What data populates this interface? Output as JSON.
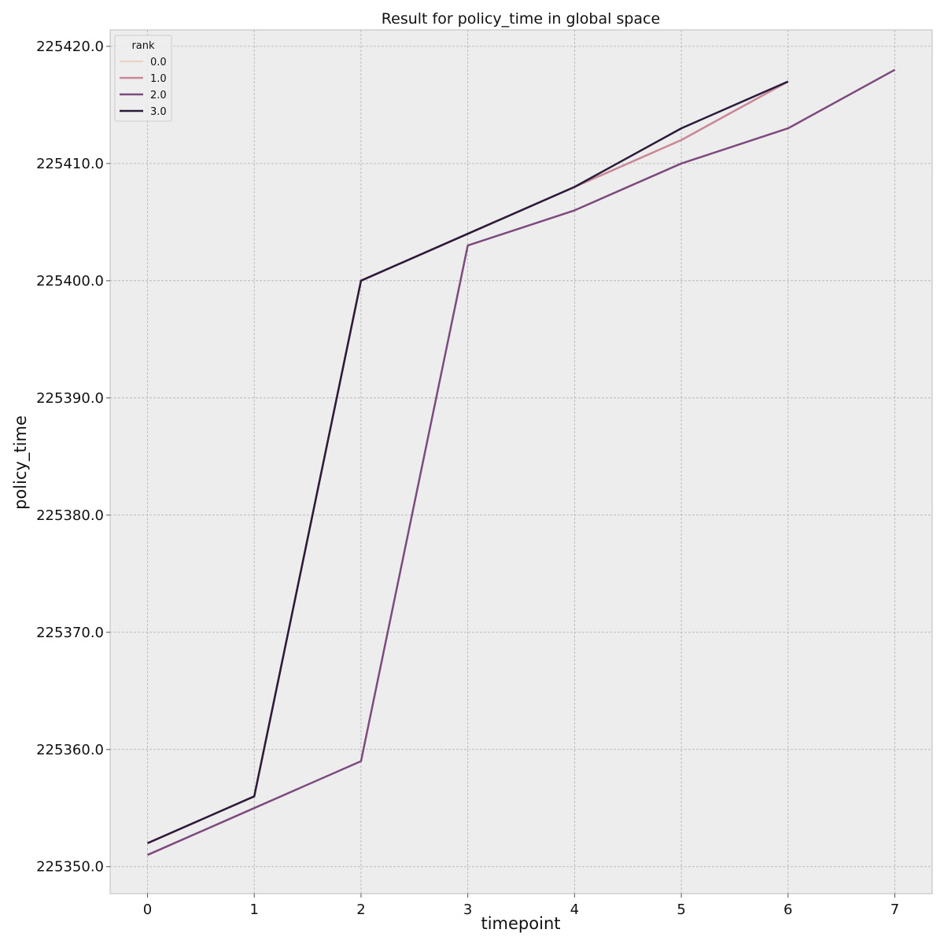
{
  "chart_data": {
    "type": "line",
    "title": "Result for policy_time in global space",
    "xlabel": "timepoint",
    "ylabel": "policy_time",
    "xlim": [
      -0.35,
      7.35
    ],
    "ylim": [
      225347.7,
      225421.4
    ],
    "x_ticks": [
      0,
      1,
      2,
      3,
      4,
      5,
      6,
      7
    ],
    "x_tick_labels": [
      "0",
      "1",
      "2",
      "3",
      "4",
      "5",
      "6",
      "7"
    ],
    "y_ticks": [
      225350,
      225360,
      225370,
      225380,
      225390,
      225400,
      225410,
      225420
    ],
    "y_tick_labels": [
      "225350.0",
      "225360.0",
      "225370.0",
      "225380.0",
      "225390.0",
      "225400.0",
      "225410.0",
      "225420.0"
    ],
    "grid": true,
    "legend": {
      "title": "rank",
      "position": "top-left"
    },
    "series": [
      {
        "name": "0.0",
        "color": "#ebd3c8",
        "x": [
          0,
          1,
          2,
          3,
          4,
          5,
          6
        ],
        "y": [
          225352,
          225356,
          225400,
          225404,
          225408,
          225412,
          225417
        ]
      },
      {
        "name": "1.0",
        "color": "#c98797",
        "x": [
          0,
          1,
          2,
          3,
          4,
          5,
          6
        ],
        "y": [
          225352,
          225356,
          225400,
          225404,
          225408,
          225412,
          225417
        ]
      },
      {
        "name": "2.0",
        "color": "#7d4a7e",
        "x": [
          0,
          1,
          2,
          3,
          4,
          5,
          6,
          7
        ],
        "y": [
          225351,
          225355,
          225359,
          225403,
          225406,
          225410,
          225413,
          225418
        ]
      },
      {
        "name": "3.0",
        "color": "#2b1b3a",
        "x": [
          0,
          1,
          2,
          3,
          4,
          5,
          6
        ],
        "y": [
          225352,
          225356,
          225400,
          225404,
          225408,
          225413,
          225417
        ]
      }
    ]
  }
}
